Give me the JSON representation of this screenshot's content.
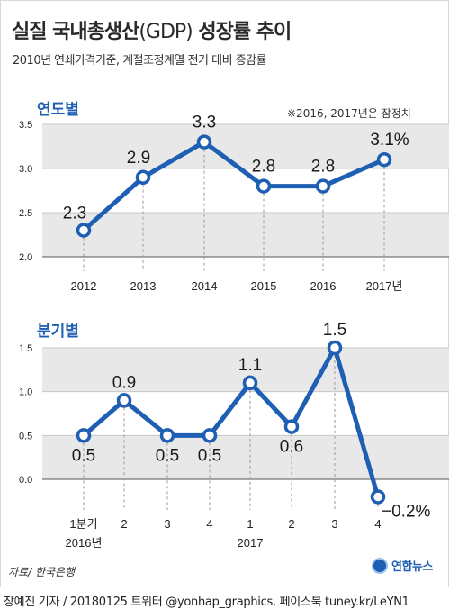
{
  "title_main": "실질 국내총생산",
  "title_paren": "(GDP)",
  "title_end": " 성장률 추이",
  "subtitle": "2010년 연쇄가격기준, 계절조정계열 전기 대비 증감률",
  "note": "※2016, 2017년은 잠정치",
  "source": "자료/ 한국은행",
  "logo_text": "연합뉴스",
  "credit": "장예진 기자 / 20180125 트위터 @yonhap_graphics, 페이스북 tuney.kr/LeYN1",
  "colors": {
    "line": "#1e5fb3",
    "band": "#e8e8e8",
    "accent": "#1e5fb3"
  },
  "chart_data": [
    {
      "type": "line",
      "title": "연도별",
      "categories": [
        "2012",
        "2013",
        "2014",
        "2015",
        "2016",
        "2017년"
      ],
      "values": [
        2.3,
        2.9,
        3.3,
        2.8,
        2.8,
        3.1
      ],
      "data_labels": [
        "2.3",
        "2.9",
        "3.3",
        "2.8",
        "2.8",
        "3.1%"
      ],
      "yticks": [
        "3.5",
        "3.0",
        "2.5",
        "2.0"
      ],
      "ylim": [
        2.0,
        3.5
      ]
    },
    {
      "type": "line",
      "title": "분기별",
      "categories": [
        "1분기",
        "2",
        "3",
        "4",
        "1",
        "2",
        "3",
        "4"
      ],
      "group_labels": [
        "2016년",
        "2017"
      ],
      "values": [
        0.5,
        0.9,
        0.5,
        0.5,
        1.1,
        0.6,
        1.5,
        -0.2
      ],
      "data_labels": [
        "0.5",
        "0.9",
        "0.5",
        "0.5",
        "1.1",
        "0.6",
        "1.5",
        "−0.2%"
      ],
      "yticks": [
        "1.5",
        "1.0",
        "0.5",
        "0.0"
      ],
      "ylim": [
        0.0,
        1.5
      ]
    }
  ]
}
